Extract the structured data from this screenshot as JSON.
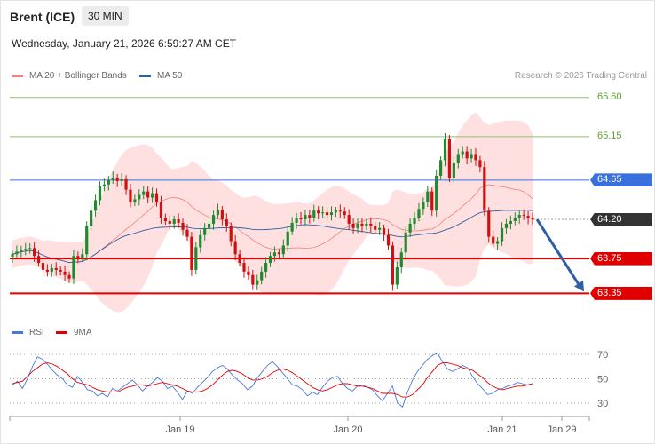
{
  "header": {
    "title": "Brent (ICE)",
    "timeframe": "30 MIN",
    "datetime": "Wednesday, January 21, 2026 6:59:27 AM CET"
  },
  "legend_main": [
    {
      "label": "MA 20 + Bollinger Bands",
      "color": "#f08080"
    },
    {
      "label": "MA 50",
      "color": "#2e5fa3"
    }
  ],
  "legend_rsi": [
    {
      "label": "RSI",
      "color": "#4a78d8"
    },
    {
      "label": "9MA",
      "color": "#e00000"
    }
  ],
  "watermark": "Research © 2026 Trading Central",
  "colors": {
    "up": "#1f8a2e",
    "down": "#d01010",
    "band_fill": "#ffd6d6",
    "ma20": "#f08080",
    "ma50": "#2e5fa3",
    "green_level": "#8cc46e",
    "blue_level": "#3a6fe0",
    "red_level": "#e00000",
    "last_price": "#333333",
    "arrow": "#2e5fa3"
  },
  "chart_data": {
    "type": "candlestick",
    "ylim": [
      63.15,
      65.75
    ],
    "x_ticks": [
      "Jan 19",
      "Jan 20",
      "Jan 21",
      "Jan 29"
    ],
    "price_levels": [
      {
        "label": "65.60",
        "value": 65.6,
        "kind": "target"
      },
      {
        "label": "65.15",
        "value": 65.15,
        "kind": "target"
      },
      {
        "label": "64.65",
        "value": 64.65,
        "kind": "pivot"
      },
      {
        "label": "64.20",
        "value": 64.2,
        "kind": "last"
      },
      {
        "label": "63.75",
        "value": 63.75,
        "kind": "support"
      },
      {
        "label": "63.35",
        "value": 63.35,
        "kind": "support"
      }
    ],
    "forecast": {
      "from": 64.2,
      "to": 63.35
    },
    "candles_close": [
      63.8,
      63.83,
      63.85,
      63.86,
      63.87,
      63.78,
      63.7,
      63.62,
      63.6,
      63.64,
      63.62,
      63.6,
      63.56,
      63.52,
      63.78,
      63.76,
      63.8,
      64.12,
      64.3,
      64.42,
      64.58,
      64.6,
      64.65,
      64.68,
      64.64,
      64.66,
      64.54,
      64.4,
      64.43,
      64.48,
      64.52,
      64.45,
      64.5,
      64.4,
      64.22,
      64.18,
      64.15,
      64.2,
      64.16,
      64.08,
      64.0,
      63.62,
      63.88,
      64.02,
      64.1,
      64.15,
      64.25,
      64.31,
      64.2,
      64.12,
      63.95,
      63.8,
      63.7,
      63.6,
      63.56,
      63.45,
      63.5,
      63.6,
      63.7,
      63.78,
      63.82,
      63.8,
      63.9,
      64.06,
      64.16,
      64.22,
      64.2,
      64.25,
      64.22,
      64.3,
      64.27,
      64.28,
      64.25,
      64.28,
      64.3,
      64.29,
      64.25,
      64.15,
      64.1,
      64.15,
      64.12,
      64.15,
      64.12,
      64.08,
      64.1,
      64.02,
      63.9,
      63.45,
      63.65,
      63.82,
      64.05,
      64.15,
      64.22,
      64.32,
      64.4,
      64.52,
      64.3,
      64.7,
      64.88,
      65.12,
      64.68,
      64.85,
      64.95,
      64.98,
      64.9,
      64.95,
      64.88,
      64.8,
      64.3,
      64.0,
      63.92,
      63.95,
      64.1,
      64.15,
      64.18,
      64.22,
      64.25,
      64.24,
      64.21,
      64.2
    ],
    "rsi": {
      "levels": [
        70,
        50,
        30
      ],
      "ylim": [
        22,
        78
      ],
      "rsi_values": [
        45,
        48,
        42,
        50,
        60,
        68,
        66,
        62,
        57,
        53,
        50,
        45,
        43,
        52,
        47,
        41,
        40,
        36,
        38,
        35,
        42,
        40,
        43,
        46,
        49,
        45,
        40,
        44,
        47,
        51,
        48,
        42,
        44,
        39,
        33,
        40,
        38,
        43,
        47,
        51,
        56,
        59,
        61,
        58,
        53,
        49,
        46,
        41,
        44,
        51,
        56,
        61,
        64,
        60,
        55,
        50,
        45,
        44,
        41,
        36,
        39,
        37,
        43,
        48,
        51,
        52,
        46,
        42,
        40,
        44,
        45,
        43,
        41,
        36,
        32,
        38,
        44,
        30,
        27,
        39,
        49,
        56,
        61,
        66,
        69,
        71,
        64,
        58,
        56,
        58,
        61,
        59,
        52,
        46,
        42,
        37,
        38,
        41,
        42,
        44,
        45,
        47,
        46,
        45,
        46
      ],
      "ma_values": [
        46,
        47,
        48,
        52,
        56,
        59,
        62,
        63,
        62,
        60,
        57,
        54,
        50,
        47,
        46,
        45,
        43,
        41,
        40,
        39,
        39,
        39,
        41,
        43,
        44,
        45,
        45,
        44,
        45,
        46,
        47,
        46,
        45,
        44,
        42,
        40,
        39,
        39,
        40,
        42,
        45,
        49,
        53,
        56,
        57,
        56,
        54,
        51,
        49,
        49,
        50,
        52,
        55,
        57,
        58,
        57,
        55,
        52,
        49,
        46,
        43,
        41,
        40,
        41,
        43,
        45,
        46,
        46,
        45,
        44,
        44,
        43,
        42,
        40,
        38,
        38,
        38,
        37,
        35,
        35,
        37,
        41,
        45,
        51,
        56,
        61,
        63,
        63,
        62,
        61,
        59,
        58,
        57,
        54,
        51,
        47,
        44,
        42,
        41,
        42,
        43,
        44,
        44,
        45,
        46
      ]
    }
  }
}
